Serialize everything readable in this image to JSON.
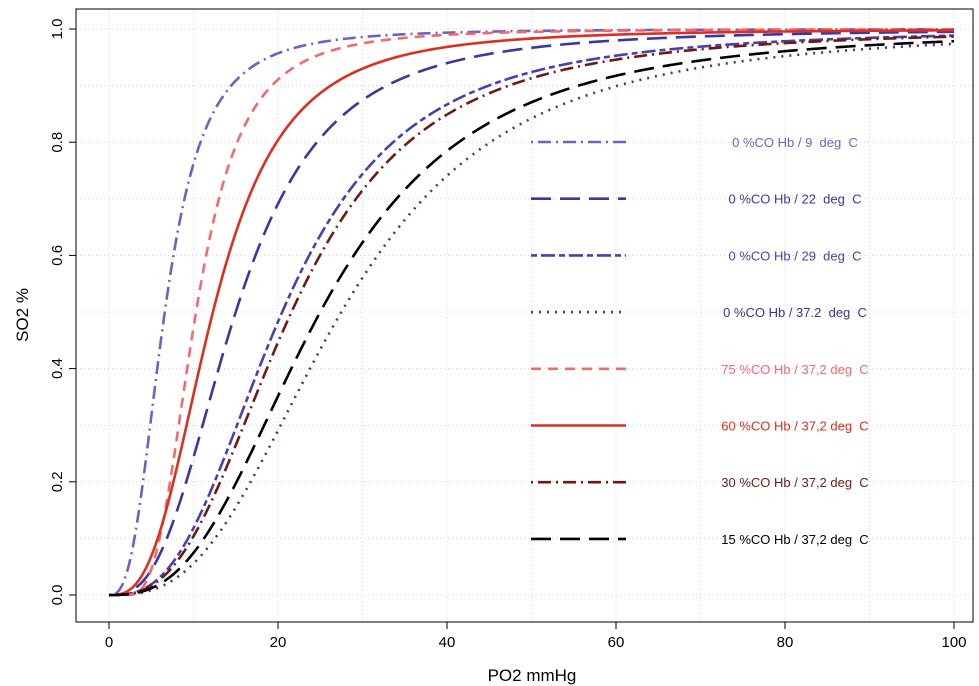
{
  "chart_data": {
    "type": "line",
    "title": "",
    "xlabel": "PO2 mmHg",
    "ylabel": "SO2 %",
    "xlim": [
      0,
      100
    ],
    "ylim": [
      0,
      1
    ],
    "xticks": [
      "0",
      "20",
      "40",
      "60",
      "80",
      "100"
    ],
    "yticks": [
      "0.0",
      "0.2",
      "0.4",
      "0.6",
      "0.8",
      "1.0"
    ],
    "grid": true,
    "legend_position": "right-center",
    "series": [
      {
        "name": "0 %CO Hb / 9  deg  C",
        "color": "#6b63c4",
        "dash": "dotdash",
        "p50": 6.6,
        "n": 2.8,
        "x0": 0
      },
      {
        "name": "0 %CO Hb / 22  deg  C",
        "color": "#3c36a3",
        "dash": "longdash",
        "p50": 15.0,
        "n": 2.8,
        "x0": 0
      },
      {
        "name": "0 %CO Hb / 29  deg  C",
        "color": "#4b3fb0",
        "dash": "twodash",
        "p50": 20.5,
        "n": 2.8,
        "x0": 0
      },
      {
        "name": "0 %CO Hb / 37.2  deg  C",
        "color": "#3a3590",
        "dash": "dotted",
        "p50": 27.5,
        "n": 2.8,
        "x0": 0
      },
      {
        "name": "75 %CO Hb / 37,2 deg  C",
        "color": "#f06b6b",
        "dash": "dashed",
        "p50": 8.3,
        "n": 3.0,
        "x0": 2
      },
      {
        "name": "60 %CO Hb / 37,2 deg  C",
        "color": "#dd2e20",
        "dash": "solid",
        "p50": 12.3,
        "n": 2.9,
        "x0": 0
      },
      {
        "name": "30 %CO Hb / 37,2 deg  C",
        "color": "#6e1a14",
        "dash": "dotdash",
        "p50": 21.6,
        "n": 2.8,
        "x0": 0
      },
      {
        "name": "15 %CO Hb / 37,2 deg  C",
        "color": "#000000",
        "dash": "longdash",
        "p50": 25.0,
        "n": 2.75,
        "x0": 0
      }
    ]
  }
}
